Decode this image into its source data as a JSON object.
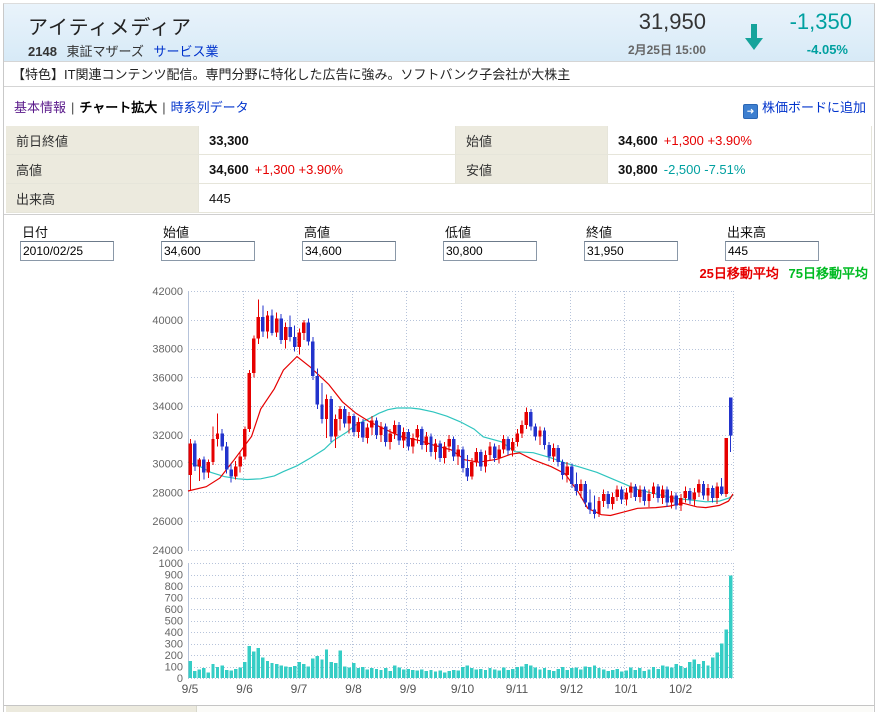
{
  "header": {
    "title": "アイティメディア",
    "code": "2148",
    "exchange": "東証マザーズ",
    "industry": "サービス業",
    "price": "31,950",
    "datetime": "2月25日 15:00",
    "change": "-1,350",
    "change_pct": "-4.05%",
    "direction": "down"
  },
  "feature": {
    "text": "【特色】IT関連コンテンツ配信。専門分野に特化した広告に強み。ソフトバンク子会社が大株主"
  },
  "nav": {
    "items": [
      {
        "label": "基本情報",
        "state": "visited"
      },
      {
        "label": "チャート拡大",
        "state": "current"
      },
      {
        "label": "時系列データ",
        "state": "link"
      }
    ],
    "separator": "|",
    "add_board": "株価ボードに追加"
  },
  "quote_table": {
    "rows": [
      [
        {
          "label": "前日終値",
          "value": "33,300",
          "value_bold": true,
          "extra": "",
          "extra_kind": ""
        },
        {
          "label": "始値",
          "value": "34,600",
          "value_bold": true,
          "extra": "+1,300 +3.90%",
          "extra_kind": "up"
        }
      ],
      [
        {
          "label": "高値",
          "value": "34,600",
          "value_bold": true,
          "extra": "+1,300 +3.90%",
          "extra_kind": "up"
        },
        {
          "label": "安値",
          "value": "30,800",
          "value_bold": true,
          "extra": "-2,500 -7.51%",
          "extra_kind": "down"
        }
      ],
      [
        {
          "label": "出来高",
          "value": "445",
          "value_bold": false,
          "extra": "",
          "extra_kind": ""
        }
      ]
    ]
  },
  "series_table": {
    "columns": [
      "日付",
      "始値",
      "高値",
      "低値",
      "終値",
      "出来高"
    ],
    "values": [
      "2010/02/25",
      "34,600",
      "34,600",
      "30,800",
      "31,950",
      "445"
    ]
  },
  "legend": {
    "ma25": "25日移動平均",
    "ma25_color": "#e60000",
    "ma75": "75日移動平均",
    "ma75_color": "#00bb22"
  },
  "colors": {
    "up_red": "#e60000",
    "down_teal": "#00a0a0",
    "candle_up": "#e60000",
    "candle_down": "#2233cc",
    "volume": "#35cdc5",
    "ma25_line": "#e60000",
    "ma75_line": "#2fc5bf",
    "grid": "#b6c3da",
    "axis_text": "#666666",
    "xlabel_text": "#555555",
    "link": "#0033cc"
  },
  "chart_data": {
    "type": "candlestick+volume",
    "price_axis": {
      "min": 24000,
      "max": 42000,
      "step": 2000
    },
    "volume_axis": {
      "min": 0,
      "max": 1000,
      "step": 100
    },
    "x_ticks": {
      "labels": [
        "9/5",
        "9/6",
        "9/7",
        "9/8",
        "9/9",
        "9/10",
        "9/11",
        "9/12",
        "10/1",
        "10/2"
      ],
      "interval_days": 12
    },
    "legend_series": [
      "25日移動平均",
      "75日移動平均"
    ],
    "candles": [
      [
        29200,
        31700,
        28100,
        31400
      ],
      [
        31400,
        31600,
        29500,
        29800
      ],
      [
        29800,
        30400,
        28800,
        30300
      ],
      [
        30300,
        30500,
        28900,
        29400
      ],
      [
        29400,
        30300,
        29000,
        30100
      ],
      [
        30100,
        32600,
        29900,
        31700
      ],
      [
        31700,
        33500,
        31200,
        32100
      ],
      [
        32100,
        32400,
        30900,
        31200
      ],
      [
        31200,
        31500,
        29300,
        29600
      ],
      [
        29600,
        30000,
        28700,
        29100
      ],
      [
        29100,
        30200,
        28900,
        29800
      ],
      [
        29800,
        30800,
        29400,
        30500
      ],
      [
        30500,
        32600,
        30300,
        32400
      ],
      [
        32400,
        36500,
        32200,
        36300
      ],
      [
        36300,
        38900,
        36000,
        38700
      ],
      [
        38700,
        41400,
        38300,
        40200
      ],
      [
        40200,
        41000,
        38800,
        39200
      ],
      [
        39200,
        40600,
        38700,
        40300
      ],
      [
        40300,
        40700,
        38900,
        39100
      ],
      [
        39100,
        40500,
        38800,
        40100
      ],
      [
        40100,
        40400,
        38300,
        38600
      ],
      [
        38600,
        39800,
        38000,
        39500
      ],
      [
        39500,
        40300,
        38500,
        38800
      ],
      [
        38800,
        39600,
        37800,
        38100
      ],
      [
        38100,
        39400,
        37600,
        39100
      ],
      [
        39100,
        40000,
        38600,
        39800
      ],
      [
        39800,
        40100,
        38200,
        38500
      ],
      [
        38500,
        38800,
        35800,
        36100
      ],
      [
        36100,
        36600,
        33800,
        34100
      ],
      [
        34100,
        35600,
        32800,
        33100
      ],
      [
        33100,
        34800,
        31800,
        34500
      ],
      [
        34500,
        34700,
        31500,
        31900
      ],
      [
        31900,
        33400,
        31100,
        33100
      ],
      [
        33100,
        34000,
        32300,
        33800
      ],
      [
        33800,
        34000,
        32500,
        32800
      ],
      [
        32800,
        33600,
        32100,
        33300
      ],
      [
        33300,
        33500,
        31900,
        32200
      ],
      [
        32200,
        33200,
        31800,
        32900
      ],
      [
        32900,
        33100,
        31500,
        31800
      ],
      [
        31800,
        32800,
        31400,
        32500
      ],
      [
        32500,
        33300,
        32000,
        33000
      ],
      [
        33000,
        33200,
        31700,
        32000
      ],
      [
        32000,
        32900,
        31500,
        32600
      ],
      [
        32600,
        32800,
        31200,
        31500
      ],
      [
        31500,
        32400,
        31000,
        32100
      ],
      [
        32100,
        33000,
        31700,
        32700
      ],
      [
        32700,
        32900,
        31300,
        31600
      ],
      [
        31600,
        32500,
        31100,
        32200
      ],
      [
        32200,
        32400,
        30900,
        31200
      ],
      [
        31200,
        32100,
        30700,
        31800
      ],
      [
        31800,
        32700,
        31400,
        32400
      ],
      [
        32400,
        32600,
        31000,
        31300
      ],
      [
        31300,
        32200,
        30800,
        31900
      ],
      [
        31900,
        32100,
        30500,
        30800
      ],
      [
        30800,
        31700,
        30300,
        31400
      ],
      [
        31400,
        31600,
        30100,
        30400
      ],
      [
        30400,
        31500,
        30000,
        31200
      ],
      [
        31200,
        32000,
        30800,
        31700
      ],
      [
        31700,
        31900,
        30200,
        30500
      ],
      [
        30500,
        31300,
        29900,
        31000
      ],
      [
        31000,
        31200,
        29400,
        29700
      ],
      [
        29700,
        30600,
        28800,
        29100
      ],
      [
        29100,
        30400,
        28900,
        30100
      ],
      [
        30100,
        31100,
        29800,
        30800
      ],
      [
        30800,
        31000,
        29500,
        29800
      ],
      [
        29800,
        30900,
        29400,
        30600
      ],
      [
        30600,
        31500,
        30200,
        31200
      ],
      [
        31200,
        31400,
        30100,
        30400
      ],
      [
        30400,
        31300,
        30000,
        31000
      ],
      [
        31000,
        32000,
        30700,
        31700
      ],
      [
        31700,
        31900,
        30600,
        30900
      ],
      [
        30900,
        31800,
        30500,
        31500
      ],
      [
        31500,
        32400,
        31200,
        32100
      ],
      [
        32100,
        33000,
        31800,
        32700
      ],
      [
        32700,
        33900,
        32400,
        33600
      ],
      [
        33600,
        33800,
        32300,
        32600
      ],
      [
        32600,
        32800,
        31600,
        31900
      ],
      [
        31900,
        32600,
        31300,
        32300
      ],
      [
        32300,
        32500,
        31000,
        31300
      ],
      [
        31300,
        31500,
        30200,
        30500
      ],
      [
        30500,
        31400,
        30100,
        31100
      ],
      [
        31100,
        31300,
        29800,
        30100
      ],
      [
        30100,
        30300,
        28900,
        29200
      ],
      [
        29200,
        30100,
        28700,
        29800
      ],
      [
        29800,
        30000,
        28300,
        28600
      ],
      [
        28600,
        29400,
        27800,
        28100
      ],
      [
        28100,
        28900,
        27600,
        28600
      ],
      [
        28600,
        28800,
        27000,
        27300
      ],
      [
        27300,
        28200,
        26500,
        26800
      ],
      [
        26800,
        27800,
        26200,
        26500
      ],
      [
        26500,
        27700,
        26300,
        27400
      ],
      [
        27400,
        28200,
        27000,
        27900
      ],
      [
        27900,
        28100,
        26900,
        27200
      ],
      [
        27200,
        28000,
        26800,
        27700
      ],
      [
        27700,
        28500,
        27400,
        28200
      ],
      [
        28200,
        28400,
        27200,
        27500
      ],
      [
        27500,
        28300,
        27100,
        28000
      ],
      [
        28000,
        28700,
        27600,
        28400
      ],
      [
        28400,
        28600,
        27400,
        27700
      ],
      [
        27700,
        28500,
        27300,
        28200
      ],
      [
        28200,
        28400,
        27100,
        27400
      ],
      [
        27400,
        28200,
        27000,
        27900
      ],
      [
        27900,
        28700,
        27600,
        28400
      ],
      [
        28400,
        28600,
        27300,
        27600
      ],
      [
        27600,
        28500,
        27200,
        28200
      ],
      [
        28200,
        28400,
        27000,
        27300
      ],
      [
        27300,
        28100,
        26900,
        27800
      ],
      [
        27800,
        28000,
        26800,
        27100
      ],
      [
        27100,
        27900,
        26700,
        27600
      ],
      [
        27600,
        28400,
        27300,
        28100
      ],
      [
        28100,
        28300,
        27200,
        27500
      ],
      [
        27500,
        28300,
        27100,
        28000
      ],
      [
        28000,
        28900,
        27700,
        28600
      ],
      [
        28600,
        28800,
        27500,
        27800
      ],
      [
        27800,
        28600,
        27400,
        28300
      ],
      [
        28300,
        28500,
        27300,
        27600
      ],
      [
        27600,
        28700,
        27200,
        28400
      ],
      [
        28400,
        29000,
        27800,
        27900
      ],
      [
        27900,
        31800,
        27700,
        31800
      ],
      [
        34600,
        34600,
        30800,
        31950
      ]
    ],
    "volumes": [
      150,
      60,
      75,
      85,
      50,
      120,
      95,
      110,
      70,
      65,
      80,
      90,
      140,
      280,
      230,
      260,
      180,
      150,
      130,
      120,
      110,
      100,
      95,
      105,
      140,
      120,
      100,
      170,
      190,
      160,
      250,
      140,
      130,
      240,
      100,
      90,
      130,
      85,
      95,
      75,
      85,
      80,
      70,
      85,
      60,
      110,
      90,
      75,
      80,
      70,
      65,
      75,
      60,
      70,
      55,
      65,
      50,
      60,
      70,
      65,
      95,
      110,
      85,
      75,
      80,
      70,
      85,
      75,
      65,
      90,
      70,
      80,
      95,
      100,
      120,
      110,
      90,
      75,
      85,
      70,
      60,
      80,
      95,
      70,
      85,
      90,
      75,
      100,
      95,
      110,
      85,
      75,
      60,
      70,
      80,
      55,
      65,
      90,
      70,
      85,
      60,
      75,
      95,
      80,
      110,
      100,
      90,
      120,
      105,
      85,
      140,
      160,
      120,
      150,
      110,
      180,
      220,
      300,
      420,
      890
    ],
    "ma25": [
      [
        0,
        28100
      ],
      [
        4,
        28400
      ],
      [
        7,
        29000
      ],
      [
        10,
        30200
      ],
      [
        14,
        31900
      ],
      [
        16,
        33800
      ],
      [
        19,
        35200
      ],
      [
        21,
        36500
      ],
      [
        24,
        37450
      ],
      [
        27,
        36700
      ],
      [
        31,
        35500
      ],
      [
        34,
        34300
      ],
      [
        37,
        33500
      ],
      [
        40,
        32900
      ],
      [
        44,
        32300
      ],
      [
        47,
        31870
      ],
      [
        51,
        31600
      ],
      [
        54,
        31300
      ],
      [
        58,
        30960
      ],
      [
        61,
        30270
      ],
      [
        64,
        30100
      ],
      [
        68,
        30300
      ],
      [
        71,
        30650
      ],
      [
        73,
        30750
      ],
      [
        76,
        30270
      ],
      [
        80,
        29790
      ],
      [
        83,
        29300
      ],
      [
        86,
        28000
      ],
      [
        88,
        26900
      ],
      [
        91,
        26450
      ],
      [
        93,
        26400
      ],
      [
        96,
        26650
      ],
      [
        99,
        26900
      ],
      [
        103,
        26950
      ],
      [
        106,
        27050
      ],
      [
        109,
        27250
      ],
      [
        112,
        27000
      ],
      [
        114,
        26950
      ],
      [
        117,
        27100
      ],
      [
        119,
        27400
      ],
      [
        120,
        27900
      ]
    ],
    "ma75": [
      [
        0,
        30100
      ],
      [
        3,
        29750
      ],
      [
        5,
        29400
      ],
      [
        8,
        29100
      ],
      [
        11,
        28950
      ],
      [
        13,
        28900
      ],
      [
        16,
        28950
      ],
      [
        19,
        29150
      ],
      [
        21,
        29450
      ],
      [
        24,
        29850
      ],
      [
        27,
        30400
      ],
      [
        30,
        31000
      ],
      [
        32,
        31600
      ],
      [
        35,
        32200
      ],
      [
        37,
        32700
      ],
      [
        40,
        33150
      ],
      [
        42,
        33500
      ],
      [
        44,
        33750
      ],
      [
        46,
        33870
      ],
      [
        49,
        33870
      ],
      [
        51,
        33800
      ],
      [
        54,
        33600
      ],
      [
        57,
        33300
      ],
      [
        60,
        32900
      ],
      [
        63,
        32400
      ],
      [
        65,
        31870
      ],
      [
        69,
        31520
      ],
      [
        72,
        30830
      ],
      [
        76,
        30760
      ],
      [
        80,
        30400
      ],
      [
        83,
        30050
      ],
      [
        86,
        29790
      ],
      [
        90,
        29400
      ],
      [
        93,
        29000
      ],
      [
        96,
        28600
      ],
      [
        99,
        28200
      ],
      [
        103,
        27900
      ],
      [
        107,
        27610
      ],
      [
        111,
        27470
      ],
      [
        114,
        27350
      ],
      [
        117,
        27400
      ],
      [
        119,
        27600
      ],
      [
        120,
        27800
      ]
    ]
  }
}
